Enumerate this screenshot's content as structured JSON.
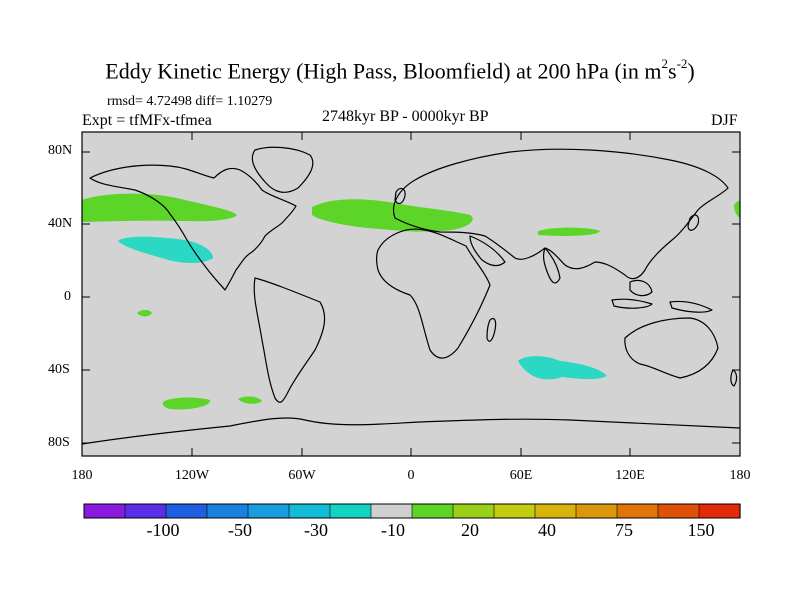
{
  "title": "Eddy Kinetic Energy (High Pass, Bloomfield) at 200 hPa (in m",
  "title_units_sup1": "2",
  "title_units_mid": "s",
  "title_units_sup2": "-2",
  "title_close": ")",
  "stats": "rmsd= 4.72498 diff= 1.10279",
  "expt": "Expt = tfMFx-tfmea",
  "period": "2748kyr BP - 0000kyr BP",
  "season": "DJF",
  "lat_labels": [
    "80N",
    "40N",
    "0",
    "40S",
    "80S"
  ],
  "lon_labels": [
    "180",
    "120W",
    "60W",
    "0",
    "60E",
    "120E",
    "180"
  ],
  "colorbar": {
    "colors": [
      "#8a1ae0",
      "#5a2ee6",
      "#1e5ee0",
      "#1a80e0",
      "#189ee0",
      "#12bcd6",
      "#12d4c0",
      "#d0d0d0",
      "#5cd428",
      "#9ad018",
      "#c4cc10",
      "#d6b40c",
      "#dc980c",
      "#e07408",
      "#e05008",
      "#e02a08"
    ],
    "labels": [
      "-100",
      "-50",
      "-30",
      "-10",
      "20",
      "40",
      "75",
      "150"
    ]
  },
  "colors": {
    "ocean_neutral": "#d3d3d3",
    "positive": "#5cd428",
    "negative": "#2ad8c4"
  },
  "icon_names": [
    "coastline-map"
  ]
}
